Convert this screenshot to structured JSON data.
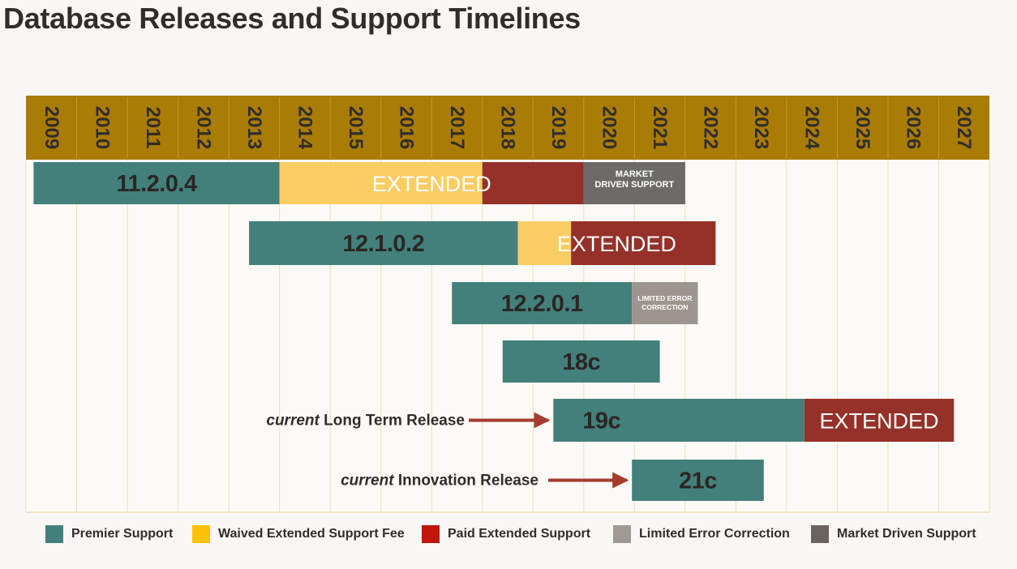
{
  "title": "Database Releases and Support Timelines",
  "chart_data": {
    "type": "bar",
    "orientation": "horizontal-timeline",
    "years": [
      "2009",
      "2010",
      "2011",
      "2012",
      "2013",
      "2014",
      "2015",
      "2016",
      "2017",
      "2018",
      "2019",
      "2020",
      "2021",
      "2022",
      "2023",
      "2024",
      "2025",
      "2026",
      "2027"
    ],
    "xlim": [
      2009,
      2028
    ],
    "grid": true,
    "colors": {
      "header": "#a97c06",
      "premier": "#43807b",
      "waived": "#f9cd63",
      "paid": "#953129",
      "limited": "#9d9590",
      "market": "#6c6b69",
      "arrow": "#a63b2e",
      "text_dark": "#312d2a",
      "grid": "#eedfb8"
    },
    "releases": [
      {
        "name": "11.2.0.4",
        "segments": [
          {
            "kind": "premier",
            "start": 2009.15,
            "end": 2014.0
          },
          {
            "kind": "waived",
            "start": 2014.0,
            "end": 2018.0
          },
          {
            "kind": "paid",
            "start": 2018.0,
            "end": 2020.0
          },
          {
            "kind": "market",
            "start": 2020.0,
            "end": 2022.0
          }
        ],
        "extended_label": "EXTENDED",
        "market_label_line1": "MARKET",
        "market_label_line2": "DRIVEN SUPPORT"
      },
      {
        "name": "12.1.0.2",
        "segments": [
          {
            "kind": "premier",
            "start": 2013.4,
            "end": 2018.7
          },
          {
            "kind": "waived",
            "start": 2018.7,
            "end": 2019.75
          },
          {
            "kind": "paid",
            "start": 2019.75,
            "end": 2022.6
          }
        ],
        "extended_label": "EXTENDED"
      },
      {
        "name": "12.2.0.1",
        "segments": [
          {
            "kind": "premier",
            "start": 2017.4,
            "end": 2020.95
          },
          {
            "kind": "limited",
            "start": 2020.95,
            "end": 2022.25
          }
        ],
        "limited_label_line1": "LIMITED ERROR",
        "limited_label_line2": "CORRECTION"
      },
      {
        "name": "18c",
        "segments": [
          {
            "kind": "premier",
            "start": 2018.4,
            "end": 2021.5
          }
        ]
      },
      {
        "name": "19c",
        "segments": [
          {
            "kind": "premier",
            "start": 2019.4,
            "end": 2024.35
          },
          {
            "kind": "paid",
            "start": 2024.35,
            "end": 2027.3
          }
        ],
        "extended_label": "EXTENDED",
        "annotation_em": "current",
        "annotation_text": " Long Term Release"
      },
      {
        "name": "21c",
        "segments": [
          {
            "kind": "premier",
            "start": 2020.95,
            "end": 2023.55
          }
        ],
        "annotation_em": "current",
        "annotation_text": " Innovation Release"
      }
    ]
  },
  "legend": [
    {
      "label": "Premier Support",
      "color": "#43807b"
    },
    {
      "label": "Waived Extended Support Fee",
      "color": "#fdc205"
    },
    {
      "label": "Paid Extended Support",
      "color": "#c0160c"
    },
    {
      "label": "Limited Error Correction",
      "color": "#a19a94"
    },
    {
      "label": "Market Driven Support",
      "color": "#6b635d"
    }
  ]
}
